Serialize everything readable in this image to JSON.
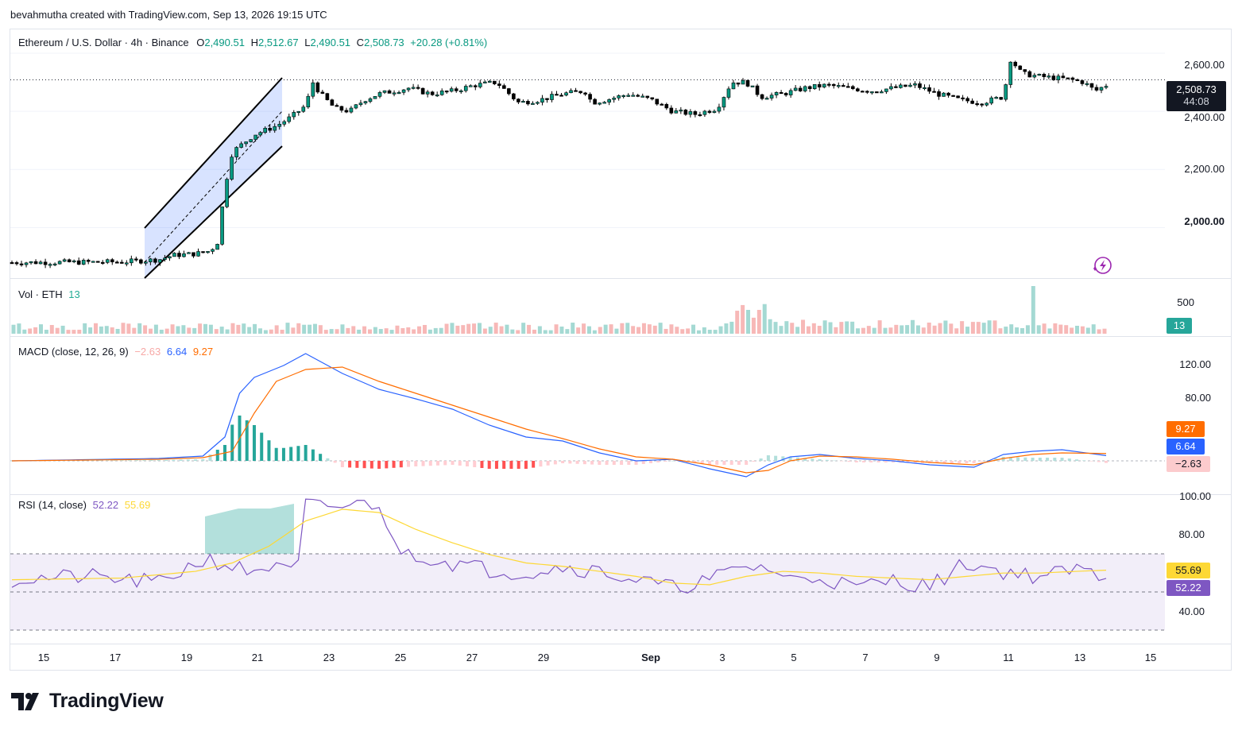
{
  "credit": "bevahmutha created with TradingView.com, Sep 13, 2026 19:15 UTC",
  "brand": "TradingView",
  "main": {
    "symbol": "Ethereum / U.S. Dollar · 4h · Binance",
    "o_label": "O",
    "o_value": "2,490.51",
    "h_label": "H",
    "h_value": "2,512.67",
    "l_label": "L",
    "l_value": "2,490.51",
    "c_label": "C",
    "c_value": "2,508.73",
    "change": "+20.28 (+0.81%)",
    "y_ticks": [
      "2,600.00",
      "2,400.00",
      "2,200.00",
      "2,000.00"
    ],
    "price_tag": "2,508.73",
    "countdown": "44:08"
  },
  "volume": {
    "title": "Vol · ETH",
    "value": "13",
    "y_ticks": [
      "500"
    ],
    "tag": "13"
  },
  "macd": {
    "title": "MACD (close, 12, 26, 9)",
    "hist": "−2.63",
    "macd": "6.64",
    "signal": "9.27",
    "y_ticks": [
      "120.00",
      "80.00"
    ],
    "tag_signal": "9.27",
    "tag_macd": "6.64",
    "tag_hist": "−2.63"
  },
  "rsi": {
    "title": "RSI (14, close)",
    "rsi": "52.22",
    "ma": "55.69",
    "y_ticks": [
      "100.00",
      "80.00",
      "40.00"
    ],
    "tag_ma": "55.69",
    "tag_rsi": "52.22"
  },
  "x_ticks": [
    "15",
    "17",
    "19",
    "21",
    "23",
    "25",
    "27",
    "29",
    "Sep",
    "3",
    "5",
    "7",
    "9",
    "11",
    "13",
    "15"
  ],
  "colors": {
    "up": "#089981",
    "down": "#f23645",
    "macd": "#2962ff",
    "signal": "#ff6d00",
    "rsi": "#7e57c2",
    "rsi_ma": "#fdd835",
    "channel": "#2962ff"
  },
  "chart_data": [
    {
      "type": "candlestick",
      "title": "Ethereum / U.S. Dollar · 4h · Binance",
      "ylim": [
        1840,
        2660
      ],
      "x": [
        "14",
        "15",
        "16",
        "17",
        "18",
        "19",
        "20",
        "21",
        "22",
        "23",
        "24",
        "25",
        "26",
        "27",
        "28",
        "29",
        "30",
        "31",
        "Sep 1",
        "2",
        "3",
        "4",
        "5",
        "6",
        "7",
        "8",
        "9",
        "10",
        "11",
        "12",
        "13"
      ],
      "close": [
        1880,
        1882,
        1885,
        1890,
        1915,
        1930,
        2260,
        2350,
        2430,
        2410,
        2465,
        2480,
        2460,
        2490,
        2500,
        2430,
        2440,
        2460,
        2460,
        2400,
        2395,
        2500,
        2450,
        2470,
        2490,
        2475,
        2480,
        2450,
        2440,
        2520,
        2508.73
      ]
    },
    {
      "type": "bar",
      "title": "Vol · ETH",
      "ylim": [
        0,
        650
      ],
      "last": 13
    },
    {
      "type": "line",
      "title": "MACD (close, 12, 26, 9)",
      "series": [
        {
          "name": "MACD",
          "values": [
            0,
            2,
            5,
            10,
            30,
            130,
            90,
            60,
            30,
            10,
            0,
            -20,
            -30,
            10,
            15,
            10,
            20,
            6.64
          ]
        },
        {
          "name": "Signal",
          "values": [
            0,
            1,
            3,
            6,
            18,
            120,
            100,
            70,
            40,
            20,
            5,
            -10,
            -20,
            -5,
            10,
            10,
            12,
            9.27
          ]
        }
      ],
      "ylim": [
        -20,
        140
      ],
      "last_hist": -2.63
    },
    {
      "type": "line",
      "title": "RSI (14, close)",
      "series": [
        {
          "name": "RSI",
          "values": [
            50,
            52,
            55,
            60,
            92,
            70,
            65,
            60,
            55,
            48,
            52,
            45,
            65,
            55,
            52,
            50,
            62,
            52.22
          ]
        },
        {
          "name": "RSI-based MA",
          "values": [
            50,
            51,
            53,
            56,
            90,
            75,
            62,
            58,
            54,
            50,
            50,
            46,
            55,
            56,
            54,
            52,
            56,
            55.69
          ]
        }
      ],
      "ylim": [
        20,
        100
      ],
      "bands": [
        70,
        30
      ]
    }
  ]
}
